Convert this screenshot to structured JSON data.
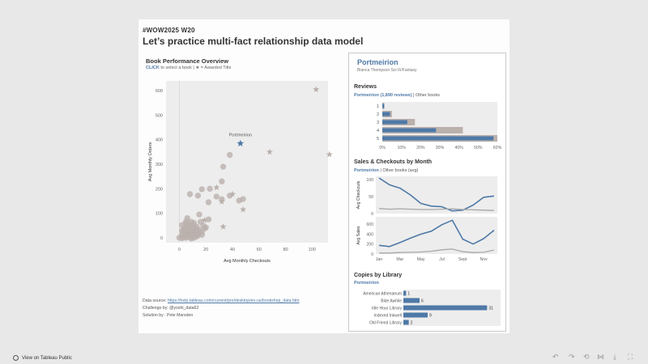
{
  "header": {
    "tag": "#WOW2025 W20",
    "title": "Let’s practice multi-fact relationship data model"
  },
  "scatter": {
    "title": "Book Performance Overview",
    "subtitle_click": "CLICK",
    "subtitle_rest": " to select a book | ★ = Awarded Title",
    "selected_label": "Portmeirion",
    "xlabel": "Avg Monthly Checkouts",
    "ylabel": "Avg Monthly Orders",
    "xticks": [
      "0",
      "20",
      "40",
      "60",
      "80",
      "100"
    ],
    "yticks": [
      "0",
      "100",
      "200",
      "300",
      "400",
      "500",
      "600"
    ]
  },
  "footer": {
    "source_label": "Data source: ",
    "source_link": "https://help.tableau.com/current/pro/desktop/en-us/bookshop_data.htm",
    "challenge": "Challenge by: @yoshi_data62",
    "solution": "Solution by : Pete Marsden"
  },
  "panel": {
    "book_title": "Portmeirion",
    "author": "Bianca Thompson Sci-Fi/Fantasy",
    "reviews": {
      "title": "Reviews",
      "sub_hl": "Portmeirion (1,890 reviews)",
      "sub_rest": " | Other books",
      "categories": [
        "1",
        "2",
        "3",
        "4",
        "5"
      ],
      "xticks": [
        "0%",
        "10%",
        "20%",
        "30%",
        "40%",
        "50%",
        "60%"
      ]
    },
    "sales": {
      "title": "Sales & Checkouts by Month",
      "sub_hl": "Portmeirion",
      "sub_rest": " | Other books (avg)",
      "ylabel_top": "Avg Checkouts",
      "ylabel_bottom": "Avg Sales",
      "yticks_top": [
        "0",
        "50",
        "100"
      ],
      "yticks_bottom": [
        "0",
        "200",
        "400",
        "600"
      ],
      "xticks": [
        "Jan",
        "Mar",
        "May",
        "Jul",
        "Sept",
        "Nov"
      ]
    },
    "copies": {
      "title": "Copies by Library",
      "sub_hl": "Portmeirion"
    }
  },
  "bottom": {
    "tableau_public": "View on Tableau Public"
  },
  "chart_data": [
    {
      "type": "scatter",
      "title": "Book Performance Overview",
      "xlabel": "Avg Monthly Checkouts",
      "ylabel": "Avg Monthly Orders",
      "xlim": [
        -10,
        112
      ],
      "ylim": [
        -20,
        640
      ],
      "grid": false,
      "circles": [
        [
          38,
          338
        ],
        [
          33,
          290
        ],
        [
          32,
          230
        ],
        [
          23,
          200
        ],
        [
          17,
          198
        ],
        [
          8,
          178
        ],
        [
          14,
          172
        ],
        [
          38,
          172
        ],
        [
          28,
          168
        ],
        [
          32,
          157
        ],
        [
          48,
          158
        ],
        [
          45,
          152
        ],
        [
          22,
          145
        ],
        [
          15,
          95
        ],
        [
          6,
          80
        ],
        [
          22,
          75
        ],
        [
          9,
          65
        ],
        [
          5,
          58
        ],
        [
          2,
          52
        ],
        [
          10,
          52
        ],
        [
          18,
          50
        ],
        [
          6,
          48
        ],
        [
          13,
          45
        ],
        [
          20,
          42
        ],
        [
          11,
          40
        ],
        [
          7,
          36
        ],
        [
          4,
          34
        ],
        [
          15,
          32
        ],
        [
          9,
          30
        ],
        [
          12,
          28
        ],
        [
          6,
          25
        ],
        [
          3,
          22
        ],
        [
          9,
          22
        ],
        [
          15,
          20
        ],
        [
          5,
          18
        ],
        [
          11,
          18
        ],
        [
          7,
          15
        ],
        [
          14,
          15
        ],
        [
          2,
          12
        ],
        [
          8,
          12
        ],
        [
          12,
          12
        ],
        [
          4,
          10
        ],
        [
          10,
          8
        ],
        [
          6,
          6
        ],
        [
          13,
          5
        ],
        [
          3,
          3
        ],
        [
          8,
          2
        ],
        [
          0,
          0
        ],
        [
          5,
          0
        ],
        [
          11,
          0
        ],
        [
          2,
          -2
        ],
        [
          9,
          -3
        ],
        [
          14,
          10
        ],
        [
          17,
          25
        ],
        [
          19,
          38
        ],
        [
          4,
          40
        ],
        [
          7,
          55
        ],
        [
          11,
          60
        ],
        [
          16,
          65
        ],
        [
          2,
          30
        ],
        [
          13,
          35
        ],
        [
          6,
          28
        ],
        [
          10,
          22
        ],
        [
          8,
          42
        ],
        [
          17,
          12
        ],
        [
          5,
          65
        ]
      ],
      "stars": [
        [
          103,
          605
        ],
        [
          68,
          350
        ],
        [
          113,
          340
        ],
        [
          28,
          205
        ],
        [
          40,
          178
        ],
        [
          48,
          115
        ],
        [
          32,
          147
        ],
        [
          19,
          72
        ],
        [
          33,
          45
        ]
      ],
      "selected": {
        "name": "Portmeirion",
        "x": 46,
        "y": 385
      }
    },
    {
      "type": "bar",
      "title": "Reviews",
      "categories": [
        "1",
        "2",
        "3",
        "4",
        "5"
      ],
      "series": [
        {
          "name": "Other books",
          "values": [
            1,
            5,
            17,
            42,
            60
          ]
        },
        {
          "name": "Portmeirion",
          "values": [
            1,
            4,
            13,
            28,
            58
          ]
        }
      ],
      "xlim": [
        0,
        60
      ]
    },
    {
      "type": "line",
      "title": "Sales & Checkouts by Month",
      "ylabel": "Avg Checkouts",
      "x": [
        "Jan",
        "Feb",
        "Mar",
        "Apr",
        "May",
        "Jun",
        "Jul",
        "Aug",
        "Sept",
        "Oct",
        "Nov",
        "Dec"
      ],
      "ylim": [
        0,
        110
      ],
      "series": [
        {
          "name": "Portmeirion",
          "values": [
            105,
            85,
            75,
            55,
            30,
            22,
            20,
            8,
            10,
            25,
            48,
            52
          ]
        },
        {
          "name": "Other books (avg)",
          "values": [
            15,
            13,
            14,
            13,
            12,
            12,
            13,
            14,
            12,
            11,
            10,
            9
          ]
        }
      ]
    },
    {
      "type": "line",
      "ylabel": "Avg Sales",
      "x": [
        "Jan",
        "Feb",
        "Mar",
        "Apr",
        "May",
        "Jun",
        "Jul",
        "Aug",
        "Sept",
        "Oct",
        "Nov",
        "Dec"
      ],
      "ylim": [
        0,
        750
      ],
      "series": [
        {
          "name": "Portmeirion",
          "values": [
            175,
            150,
            230,
            320,
            400,
            460,
            590,
            680,
            300,
            200,
            310,
            480
          ]
        },
        {
          "name": "Other books (avg)",
          "values": [
            20,
            20,
            30,
            35,
            40,
            55,
            85,
            100,
            45,
            30,
            35,
            80
          ]
        }
      ]
    },
    {
      "type": "bar",
      "title": "Copies by Library",
      "categories": [
        "American Athenaeum",
        "Bide Awhile",
        "Idle Hour Library",
        "Indexed Inkwell",
        "Old Friend Library"
      ],
      "values": [
        1,
        6,
        31,
        9,
        2
      ],
      "xlim": [
        0,
        36
      ]
    }
  ],
  "colors": {
    "accent": "#4e79a7",
    "grey": "#bab0ac",
    "plot_bg": "#ededed"
  },
  "icons": [
    "tableau-public-icon",
    "undo-icon",
    "redo-icon",
    "reset-icon",
    "share-icon",
    "download-icon",
    "fullscreen-icon"
  ]
}
